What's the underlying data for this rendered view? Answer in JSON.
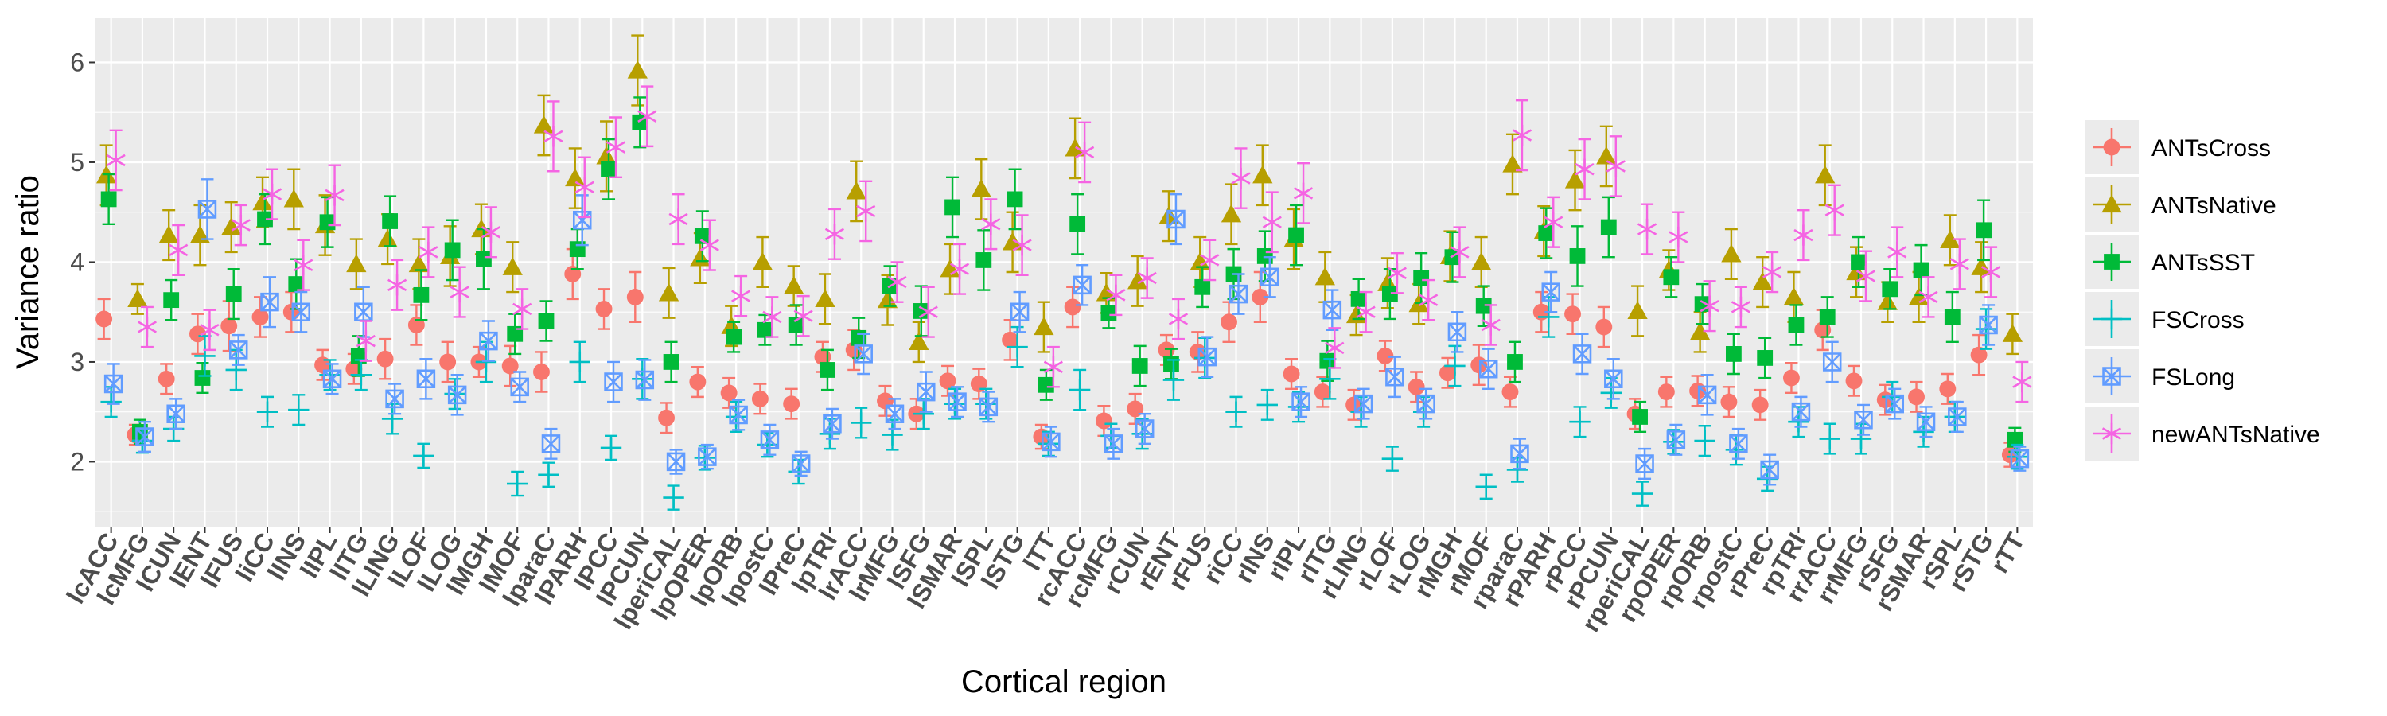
{
  "chart_data": {
    "type": "scatter",
    "title": "",
    "xlabel": "Cortical region",
    "ylabel": "Variance ratio",
    "ylim": [
      1.35,
      6.45
    ],
    "y_ticks": [
      2,
      3,
      4,
      5,
      6
    ],
    "grid": true,
    "legend_position": "right",
    "categories": [
      "lcACC",
      "lcMFG",
      "lCUN",
      "lENT",
      "lFUS",
      "liCC",
      "lINS",
      "lIPL",
      "lITG",
      "lLING",
      "lLOF",
      "lLOG",
      "lMGH",
      "lMOF",
      "lparaC",
      "lPARH",
      "lPCC",
      "lPCUN",
      "lperiCAL",
      "lpOPER",
      "lpORB",
      "lpostC",
      "lPreC",
      "lpTRI",
      "lrACC",
      "lrMFG",
      "lSFG",
      "lSMAR",
      "lSPL",
      "lSTG",
      "lTT",
      "rcACC",
      "rcMFG",
      "rCUN",
      "rENT",
      "rFUS",
      "riCC",
      "rINS",
      "rIPL",
      "rITG",
      "rLING",
      "rLOF",
      "rLOG",
      "rMGH",
      "rMOF",
      "rparaC",
      "rPARH",
      "rPCC",
      "rPCUN",
      "rperiCAL",
      "rpOPER",
      "rpORB",
      "rpostC",
      "rPreC",
      "rpTRI",
      "rrACC",
      "rrMFG",
      "rSFG",
      "rSMAR",
      "rSPL",
      "rSTG",
      "rTT"
    ],
    "series": [
      {
        "name": "ANTsCross",
        "color": "#F8766D",
        "marker": "circle",
        "values": [
          3.43,
          2.27,
          2.83,
          3.28,
          3.36,
          3.45,
          3.5,
          2.97,
          2.93,
          3.03,
          3.37,
          3.0,
          3.0,
          2.96,
          2.9,
          3.88,
          3.53,
          3.65,
          2.44,
          2.8,
          2.69,
          2.63,
          2.58,
          3.05,
          3.12,
          2.61,
          2.48,
          2.81,
          2.78,
          3.22,
          2.25,
          3.55,
          2.41,
          2.53,
          3.12,
          3.1,
          3.4,
          3.65,
          2.88,
          2.7,
          2.57,
          3.06,
          2.75,
          2.89,
          2.97,
          2.7,
          3.5,
          3.48,
          3.35,
          2.48,
          2.7,
          2.71,
          2.6,
          2.57,
          2.84,
          3.32,
          2.81,
          2.62,
          2.65,
          2.73,
          3.07,
          2.07
        ],
        "errors": [
          0.2,
          0.1,
          0.15,
          0.2,
          0.25,
          0.2,
          0.2,
          0.15,
          0.15,
          0.2,
          0.2,
          0.2,
          0.15,
          0.2,
          0.2,
          0.25,
          0.2,
          0.25,
          0.15,
          0.15,
          0.15,
          0.15,
          0.15,
          0.15,
          0.2,
          0.15,
          0.15,
          0.15,
          0.15,
          0.2,
          0.12,
          0.2,
          0.15,
          0.15,
          0.15,
          0.2,
          0.2,
          0.25,
          0.15,
          0.15,
          0.15,
          0.15,
          0.15,
          0.15,
          0.2,
          0.15,
          0.2,
          0.2,
          0.2,
          0.15,
          0.15,
          0.15,
          0.15,
          0.15,
          0.15,
          0.2,
          0.15,
          0.15,
          0.15,
          0.15,
          0.2,
          0.12
        ]
      },
      {
        "name": "ANTsNative",
        "color": "#B79F00",
        "marker": "triangle",
        "values": [
          4.87,
          3.63,
          4.27,
          4.27,
          4.35,
          4.6,
          4.63,
          4.37,
          3.98,
          4.23,
          3.98,
          4.06,
          4.33,
          3.95,
          5.37,
          4.84,
          5.06,
          5.92,
          3.69,
          4.04,
          3.36,
          4.0,
          3.76,
          3.63,
          4.71,
          3.62,
          3.2,
          3.93,
          4.73,
          4.2,
          3.35,
          5.14,
          3.69,
          3.81,
          4.46,
          4.0,
          4.48,
          4.87,
          4.23,
          3.85,
          3.47,
          3.79,
          3.58,
          4.06,
          4.0,
          4.98,
          4.31,
          4.82,
          5.06,
          3.51,
          3.92,
          3.3,
          4.08,
          3.8,
          3.65,
          4.87,
          3.9,
          3.6,
          3.65,
          4.22,
          3.95,
          3.28
        ],
        "errors": [
          0.3,
          0.15,
          0.25,
          0.3,
          0.25,
          0.25,
          0.3,
          0.3,
          0.25,
          0.25,
          0.25,
          0.3,
          0.25,
          0.25,
          0.3,
          0.3,
          0.35,
          0.35,
          0.25,
          0.25,
          0.2,
          0.25,
          0.2,
          0.25,
          0.3,
          0.25,
          0.2,
          0.25,
          0.3,
          0.3,
          0.25,
          0.3,
          0.2,
          0.25,
          0.25,
          0.25,
          0.3,
          0.3,
          0.3,
          0.25,
          0.2,
          0.25,
          0.2,
          0.25,
          0.25,
          0.3,
          0.25,
          0.3,
          0.3,
          0.25,
          0.2,
          0.2,
          0.25,
          0.25,
          0.25,
          0.3,
          0.25,
          0.2,
          0.25,
          0.25,
          0.25,
          0.2
        ]
      },
      {
        "name": "ANTsSST",
        "color": "#00BA38",
        "marker": "square",
        "values": [
          4.63,
          2.3,
          3.62,
          2.84,
          3.68,
          4.43,
          3.78,
          4.4,
          3.06,
          4.41,
          3.67,
          4.12,
          4.03,
          3.28,
          3.41,
          4.13,
          4.93,
          5.4,
          3.0,
          4.26,
          3.25,
          3.32,
          3.37,
          2.92,
          3.24,
          3.76,
          3.51,
          4.55,
          4.02,
          4.63,
          2.77,
          4.38,
          3.49,
          2.96,
          2.98,
          3.75,
          3.88,
          4.06,
          4.27,
          3.01,
          3.63,
          3.68,
          3.84,
          4.05,
          3.56,
          3.0,
          4.29,
          4.06,
          4.35,
          2.45,
          3.85,
          3.58,
          3.08,
          3.04,
          3.37,
          3.45,
          4.0,
          3.73,
          3.92,
          3.45,
          4.32,
          2.22
        ],
        "errors": [
          0.25,
          0.12,
          0.2,
          0.15,
          0.25,
          0.25,
          0.25,
          0.25,
          0.2,
          0.25,
          0.25,
          0.3,
          0.3,
          0.2,
          0.2,
          0.2,
          0.3,
          0.25,
          0.2,
          0.25,
          0.15,
          0.15,
          0.2,
          0.2,
          0.2,
          0.2,
          0.25,
          0.3,
          0.3,
          0.3,
          0.15,
          0.3,
          0.15,
          0.2,
          0.15,
          0.2,
          0.25,
          0.25,
          0.3,
          0.2,
          0.2,
          0.25,
          0.25,
          0.25,
          0.2,
          0.2,
          0.25,
          0.3,
          0.3,
          0.15,
          0.2,
          0.2,
          0.2,
          0.2,
          0.2,
          0.2,
          0.25,
          0.2,
          0.25,
          0.25,
          0.3,
          0.12
        ]
      },
      {
        "name": "FSCross",
        "color": "#00BFC4",
        "marker": "plus",
        "values": [
          2.6,
          2.21,
          2.33,
          3.06,
          2.92,
          2.5,
          2.52,
          2.87,
          2.87,
          2.43,
          2.06,
          2.68,
          3.0,
          1.78,
          1.87,
          3.0,
          2.14,
          2.83,
          1.64,
          2.04,
          2.45,
          2.17,
          1.9,
          2.28,
          2.39,
          2.27,
          2.48,
          2.58,
          2.58,
          3.15,
          2.18,
          2.72,
          2.26,
          2.28,
          2.82,
          3.04,
          2.5,
          2.57,
          2.55,
          2.83,
          2.5,
          2.03,
          2.5,
          2.96,
          1.75,
          1.92,
          3.45,
          2.4,
          2.69,
          1.68,
          2.2,
          2.21,
          2.12,
          1.83,
          2.4,
          2.23,
          2.23,
          2.65,
          2.3,
          2.45,
          3.33,
          2.05
        ],
        "errors": [
          0.15,
          0.12,
          0.12,
          0.2,
          0.2,
          0.15,
          0.15,
          0.15,
          0.15,
          0.15,
          0.12,
          0.15,
          0.2,
          0.12,
          0.12,
          0.2,
          0.12,
          0.2,
          0.12,
          0.12,
          0.15,
          0.12,
          0.12,
          0.15,
          0.15,
          0.15,
          0.15,
          0.15,
          0.15,
          0.2,
          0.12,
          0.2,
          0.12,
          0.15,
          0.2,
          0.2,
          0.15,
          0.15,
          0.15,
          0.2,
          0.15,
          0.12,
          0.15,
          0.2,
          0.12,
          0.12,
          0.2,
          0.15,
          0.15,
          0.12,
          0.12,
          0.15,
          0.15,
          0.12,
          0.15,
          0.15,
          0.15,
          0.15,
          0.15,
          0.15,
          0.2,
          0.12
        ]
      },
      {
        "name": "FSLong",
        "color": "#619CFF",
        "marker": "square-x",
        "values": [
          2.78,
          2.25,
          2.48,
          4.53,
          3.12,
          3.6,
          3.5,
          2.83,
          3.5,
          2.63,
          2.83,
          2.67,
          3.21,
          2.75,
          2.18,
          4.42,
          2.8,
          2.82,
          2.0,
          2.05,
          2.47,
          2.22,
          1.98,
          2.38,
          3.08,
          2.48,
          2.7,
          2.6,
          2.55,
          3.5,
          2.2,
          3.77,
          2.18,
          2.33,
          4.43,
          3.05,
          3.68,
          3.85,
          2.6,
          3.52,
          2.58,
          2.85,
          2.58,
          3.3,
          2.93,
          2.08,
          3.7,
          3.08,
          2.83,
          1.98,
          2.22,
          2.67,
          2.18,
          1.92,
          2.5,
          3.0,
          2.42,
          2.58,
          2.4,
          2.45,
          3.37,
          2.03
        ],
        "errors": [
          0.2,
          0.15,
          0.15,
          0.3,
          0.15,
          0.25,
          0.2,
          0.15,
          0.25,
          0.15,
          0.2,
          0.2,
          0.2,
          0.15,
          0.15,
          0.25,
          0.2,
          0.2,
          0.12,
          0.12,
          0.15,
          0.15,
          0.12,
          0.15,
          0.2,
          0.15,
          0.2,
          0.15,
          0.15,
          0.2,
          0.15,
          0.2,
          0.15,
          0.15,
          0.25,
          0.2,
          0.2,
          0.2,
          0.15,
          0.2,
          0.15,
          0.2,
          0.15,
          0.2,
          0.2,
          0.15,
          0.2,
          0.2,
          0.2,
          0.15,
          0.15,
          0.2,
          0.15,
          0.15,
          0.15,
          0.2,
          0.15,
          0.15,
          0.15,
          0.15,
          0.2,
          0.12
        ]
      },
      {
        "name": "newANTsNative",
        "color": "#F564E3",
        "marker": "asterisk",
        "values": [
          5.02,
          3.35,
          4.12,
          3.32,
          4.37,
          4.68,
          3.97,
          4.67,
          3.21,
          3.77,
          4.1,
          3.7,
          4.3,
          3.53,
          5.26,
          4.75,
          5.15,
          5.46,
          4.43,
          4.17,
          3.66,
          3.45,
          3.46,
          4.28,
          4.51,
          3.8,
          3.5,
          3.93,
          4.38,
          4.17,
          2.95,
          5.1,
          3.67,
          3.84,
          3.43,
          4.02,
          4.84,
          4.4,
          4.69,
          3.14,
          3.5,
          3.89,
          3.62,
          4.1,
          3.37,
          5.27,
          4.4,
          4.93,
          4.96,
          4.33,
          4.25,
          3.56,
          3.55,
          3.9,
          4.27,
          4.52,
          3.86,
          4.1,
          3.65,
          3.98,
          3.9,
          2.8
        ],
        "errors": [
          0.3,
          0.2,
          0.25,
          0.2,
          0.2,
          0.25,
          0.25,
          0.3,
          0.2,
          0.25,
          0.25,
          0.25,
          0.25,
          0.2,
          0.35,
          0.3,
          0.3,
          0.3,
          0.25,
          0.25,
          0.2,
          0.2,
          0.2,
          0.25,
          0.3,
          0.2,
          0.25,
          0.25,
          0.25,
          0.3,
          0.2,
          0.3,
          0.2,
          0.2,
          0.2,
          0.2,
          0.3,
          0.3,
          0.3,
          0.2,
          0.2,
          0.2,
          0.2,
          0.25,
          0.2,
          0.35,
          0.25,
          0.3,
          0.3,
          0.25,
          0.25,
          0.25,
          0.2,
          0.2,
          0.25,
          0.25,
          0.25,
          0.25,
          0.2,
          0.25,
          0.25,
          0.2
        ]
      }
    ]
  }
}
